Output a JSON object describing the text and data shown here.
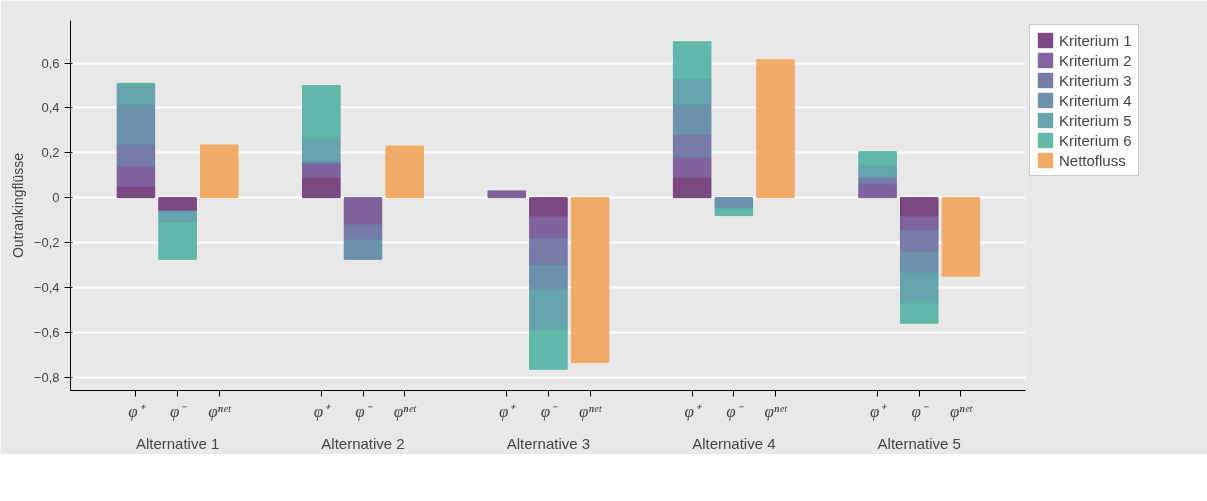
{
  "chart_data": {
    "type": "bar",
    "stacked": true,
    "ylabel": "Outrankingflüsse",
    "categories": [
      "φ⁺",
      "φ⁻",
      "φⁿᵉᵗ",
      "φ⁺",
      "φ⁻",
      "φⁿᵉᵗ",
      "φ⁺",
      "φ⁻",
      "φⁿᵉᵗ",
      "φ⁺",
      "φ⁻",
      "φⁿᵉᵗ",
      "φ⁺",
      "φ⁻",
      "φⁿᵉᵗ"
    ],
    "annotations": [
      "Alternative 1",
      "Alternative 2",
      "Alternative 3",
      "Alternative 4",
      "Alternative 5"
    ],
    "series": [
      {
        "name": "Kriterium 1",
        "color": "#763f7b",
        "values": [
          0.05,
          -0.06,
          null,
          0.09,
          null,
          null,
          null,
          -0.085,
          null,
          0.09,
          null,
          null,
          null,
          -0.085,
          null
        ]
      },
      {
        "name": "Kriterium 2",
        "color": "#7a5c98",
        "values": [
          0.09,
          null,
          null,
          0.06,
          -0.12,
          null,
          0.03,
          -0.095,
          null,
          0.09,
          null,
          null,
          0.06,
          -0.06,
          null
        ]
      },
      {
        "name": "Kriterium 3",
        "color": "#7075a3",
        "values": [
          0.095,
          null,
          null,
          0.01,
          -0.065,
          null,
          null,
          -0.12,
          null,
          0.1,
          null,
          null,
          0.025,
          -0.095,
          null
        ]
      },
      {
        "name": "Kriterium 4",
        "color": "#658ca8",
        "values": [
          0.18,
          null,
          null,
          null,
          -0.09,
          null,
          null,
          -0.11,
          null,
          0.135,
          -0.05,
          null,
          0.01,
          -0.095,
          null
        ]
      },
      {
        "name": "Kriterium 5",
        "color": "#5fa0aa",
        "values": [
          0.09,
          -0.05,
          null,
          0.11,
          null,
          null,
          null,
          -0.18,
          null,
          0.115,
          null,
          null,
          0.05,
          -0.135,
          null
        ]
      },
      {
        "name": "Kriterium 6",
        "color": "#5ab5a4",
        "values": [
          0.005,
          -0.165,
          null,
          0.23,
          null,
          null,
          null,
          -0.175,
          null,
          0.165,
          -0.03,
          null,
          0.06,
          -0.09,
          null
        ]
      },
      {
        "name": "Nettofluss",
        "color": "#f1a862",
        "values": [
          null,
          null,
          0.235,
          null,
          null,
          0.23,
          null,
          null,
          -0.735,
          null,
          null,
          0.615,
          null,
          null,
          -0.35
        ]
      }
    ],
    "ylim": [
      -0.86,
      0.79
    ],
    "yticks": [
      {
        "value": -0.8,
        "label": "−0,8"
      },
      {
        "value": -0.6,
        "label": "−0,6"
      },
      {
        "value": -0.4,
        "label": "−0,4"
      },
      {
        "value": -0.2,
        "label": "−0,2"
      },
      0,
      {
        "value": 0.2,
        "label": "0,2"
      },
      {
        "value": 0.4,
        "label": "0,4"
      },
      {
        "value": 0.6,
        "label": "0,6"
      }
    ],
    "grid": "y",
    "legend": "top right"
  }
}
